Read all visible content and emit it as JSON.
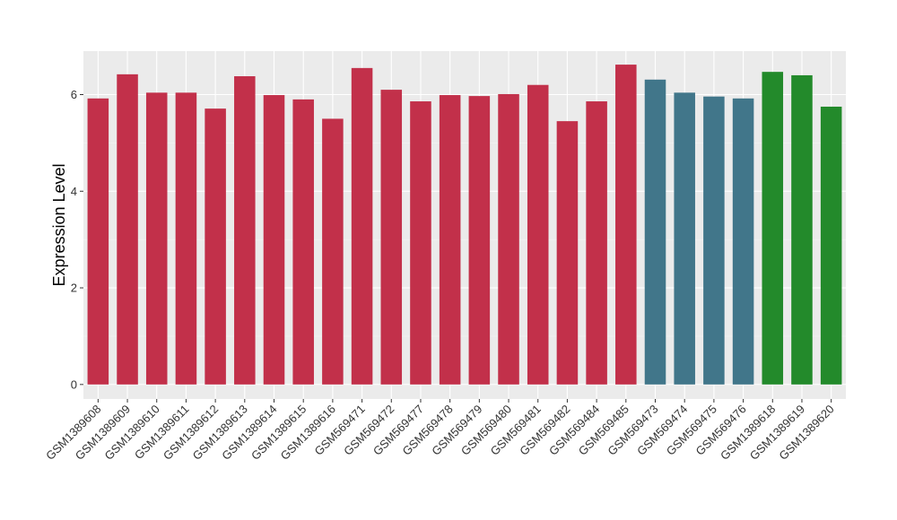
{
  "chart_data": {
    "type": "bar",
    "ylabel": "Expression Level",
    "xlabel": "",
    "ylim": [
      -0.3,
      6.9
    ],
    "yticks": [
      0,
      2,
      4,
      6
    ],
    "grid": true,
    "panel_background": "#ebebeb",
    "categories": [
      "GSM1389608",
      "GSM1389609",
      "GSM1389610",
      "GSM1389611",
      "GSM1389612",
      "GSM1389613",
      "GSM1389614",
      "GSM1389615",
      "GSM1389616",
      "GSM569471",
      "GSM569472",
      "GSM569477",
      "GSM569478",
      "GSM569479",
      "GSM569480",
      "GSM569481",
      "GSM569482",
      "GSM569484",
      "GSM569485",
      "GSM569473",
      "GSM569474",
      "GSM569475",
      "GSM569476",
      "GSM1389618",
      "GSM1389619",
      "GSM1389620"
    ],
    "values": [
      5.92,
      6.42,
      6.04,
      6.04,
      5.71,
      6.38,
      5.99,
      5.9,
      5.5,
      6.55,
      6.1,
      5.86,
      5.99,
      5.97,
      6.01,
      6.2,
      5.45,
      5.86,
      6.62,
      6.31,
      6.04,
      5.96,
      5.92,
      6.47,
      6.4,
      5.75
    ],
    "groups": [
      "red",
      "red",
      "red",
      "red",
      "red",
      "red",
      "red",
      "red",
      "red",
      "red",
      "red",
      "red",
      "red",
      "red",
      "red",
      "red",
      "red",
      "red",
      "red",
      "teal",
      "teal",
      "teal",
      "teal",
      "green",
      "green",
      "green"
    ],
    "colors": {
      "red": "#c2304a",
      "teal": "#41768a",
      "green": "#238a2b"
    }
  }
}
